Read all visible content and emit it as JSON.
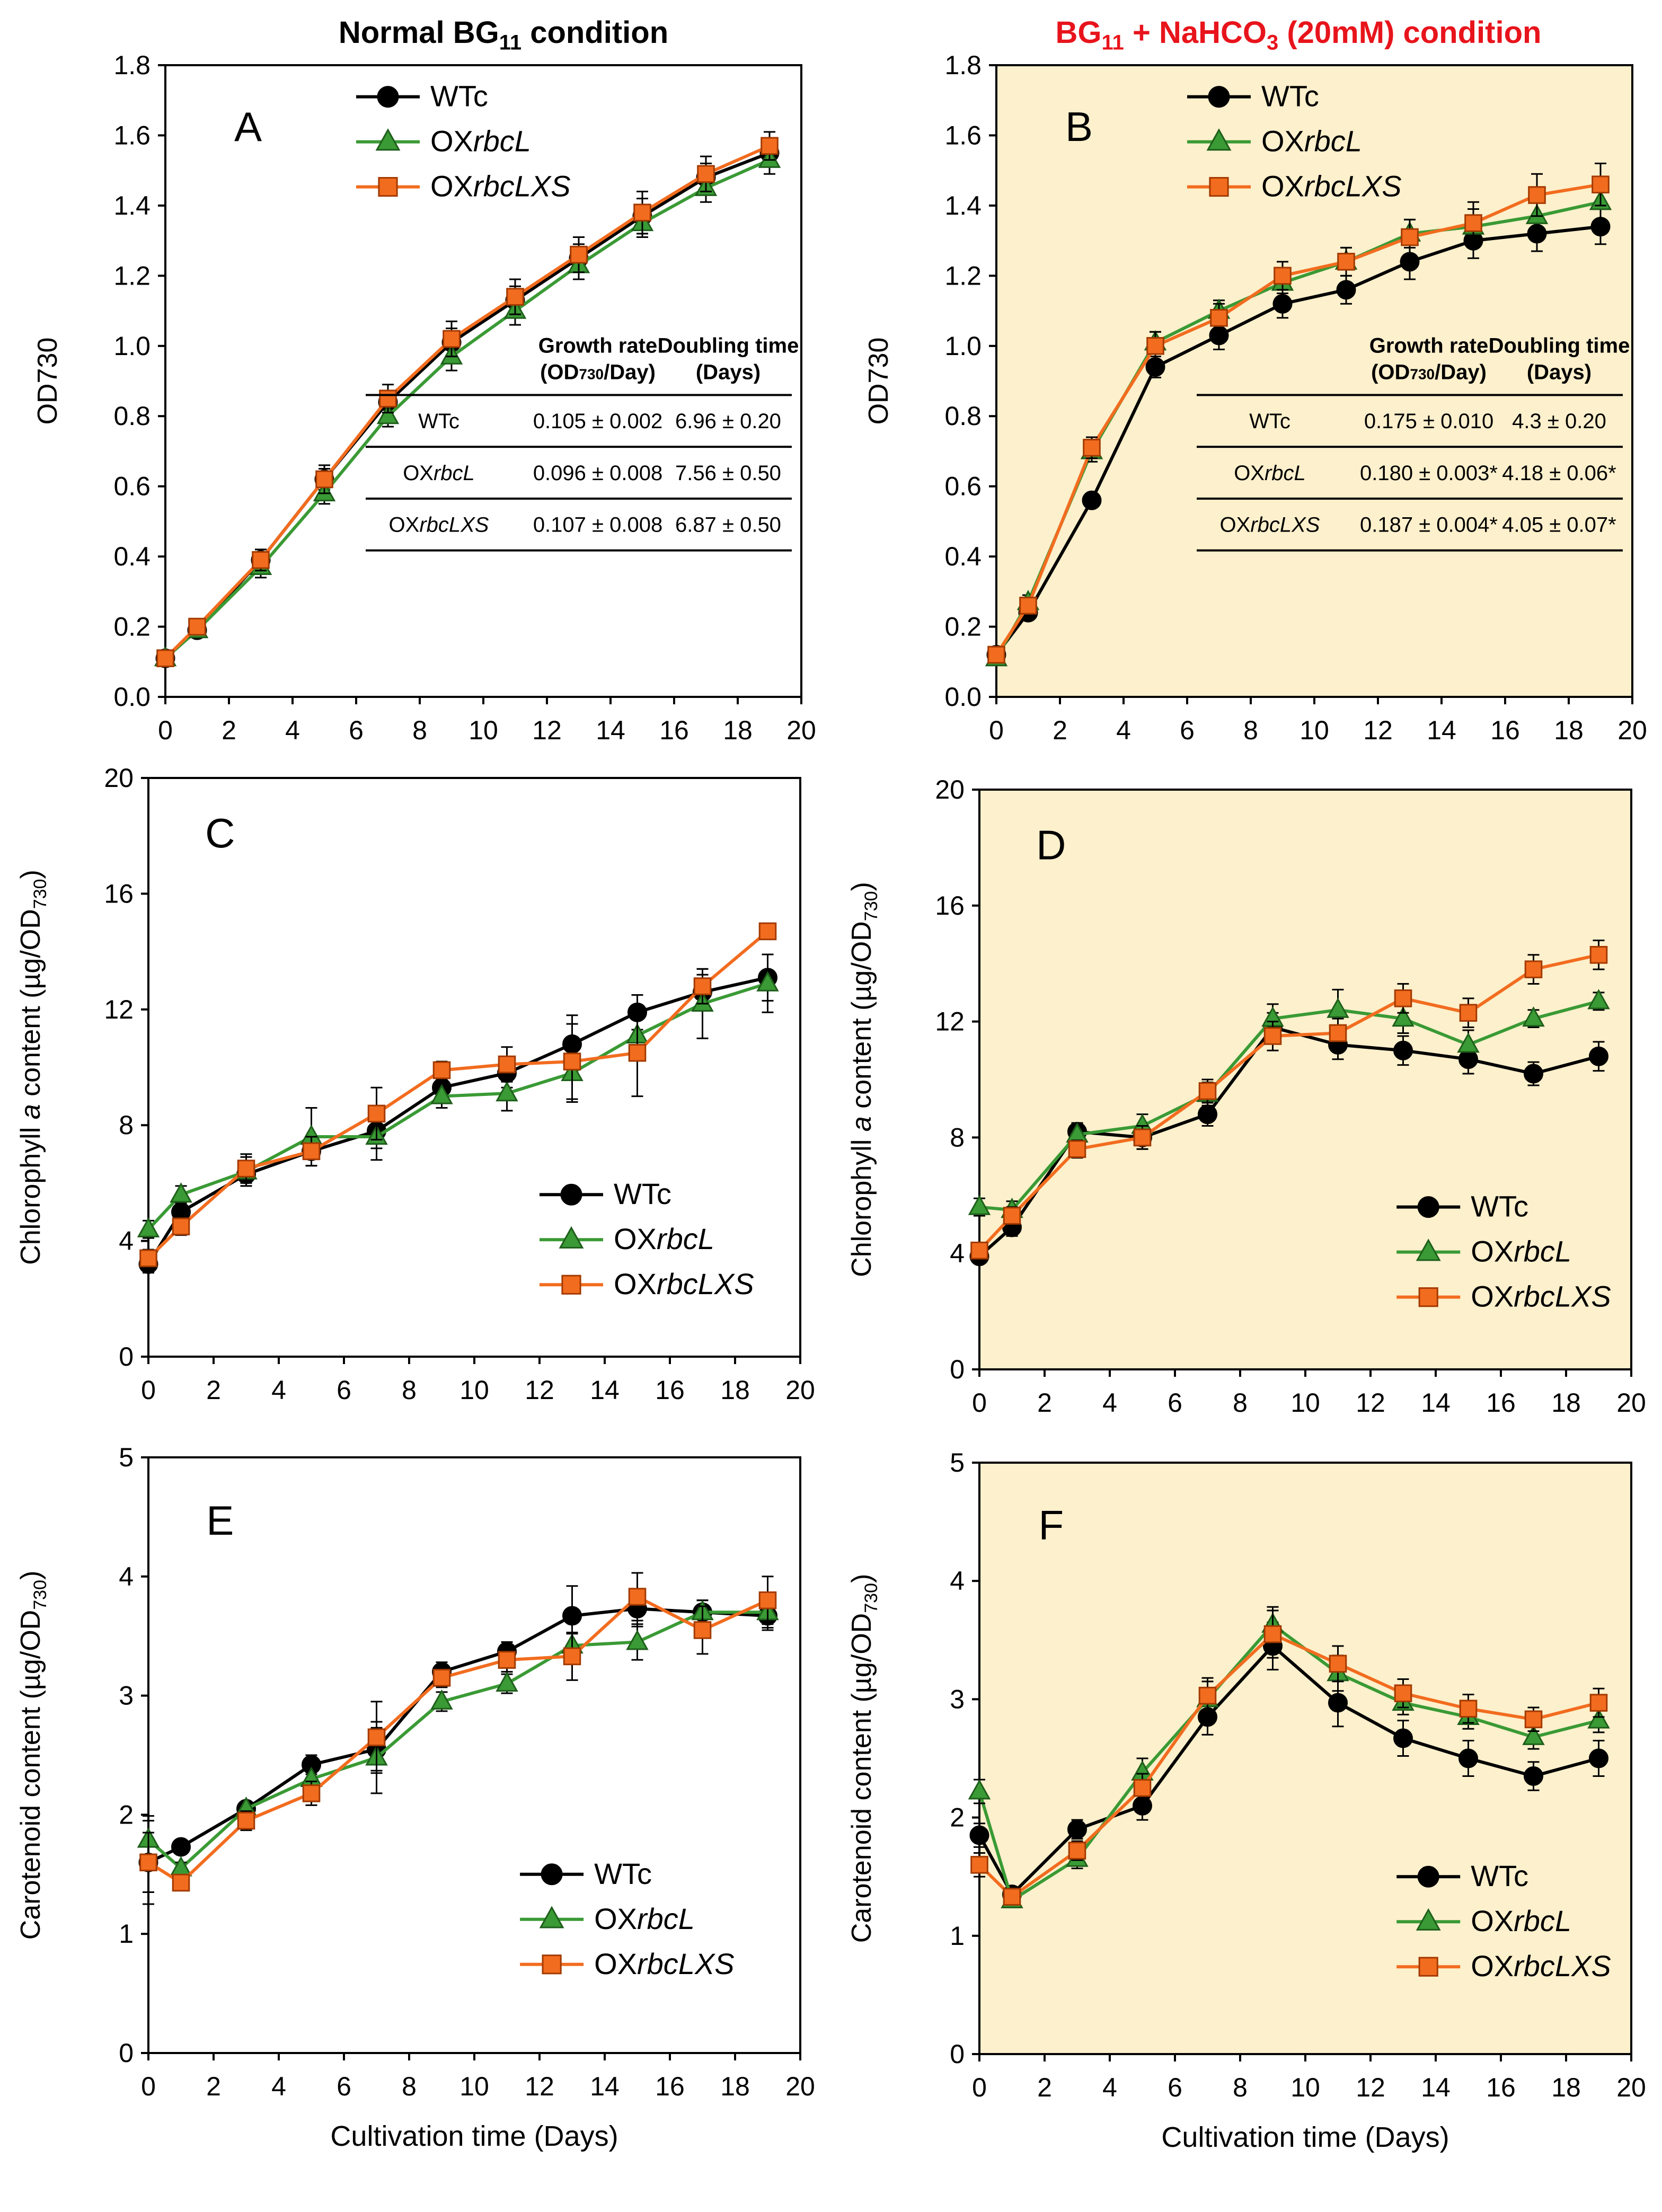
{
  "titles": {
    "left": {
      "main": "Normal BG",
      "sub": "11",
      "rest": " condition"
    },
    "right": {
      "p1": "BG",
      "s1": "11",
      "p2": " + NaHCO",
      "s2": "3",
      "p3": " (20mM) condition"
    }
  },
  "colors": {
    "WTc": "#000000",
    "OXrbcL": "#3a9a35",
    "OXrbcLXS": "#f26c1f",
    "highlight_bg": "#fdf0cc",
    "title_red": "#e8141c"
  },
  "legend": [
    {
      "prefix": "WTc",
      "italic": ""
    },
    {
      "prefix": "OX",
      "italic": "rbcL"
    },
    {
      "prefix": "OX",
      "italic": "rbcLXS"
    }
  ],
  "chart_data": [
    {
      "id": "A",
      "type": "line",
      "panel_label": "A",
      "highlighted": false,
      "xlabel": "",
      "ylabel": "OD730",
      "xlim": [
        0,
        20
      ],
      "ylim": [
        0,
        1.8
      ],
      "xticks": [
        0,
        2,
        4,
        6,
        8,
        10,
        12,
        14,
        16,
        18,
        20
      ],
      "xtick_labels": [
        "0",
        "2",
        "4",
        "6",
        "8",
        "10",
        "12",
        "14",
        "16",
        "18",
        "20"
      ],
      "yticks": [
        0,
        0.2,
        0.4,
        0.6,
        0.8,
        1.0,
        1.2,
        1.4,
        1.6,
        1.8
      ],
      "ytick_labels": [
        "0.0",
        "0.2",
        "0.4",
        "0.6",
        "0.8",
        "1.0",
        "1.2",
        "1.4",
        "1.6",
        "1.8"
      ],
      "x": [
        0,
        1,
        3,
        5,
        7,
        9,
        11,
        13,
        15,
        17,
        19
      ],
      "series": [
        {
          "name": "WTc",
          "values": [
            0.11,
            0.19,
            0.39,
            0.62,
            0.84,
            1.01,
            1.13,
            1.25,
            1.37,
            1.48,
            1.55
          ],
          "errors": [
            0.02,
            0.02,
            0.03,
            0.03,
            0.03,
            0.04,
            0.04,
            0.04,
            0.05,
            0.04,
            0.04
          ]
        },
        {
          "name": "OXrbcL",
          "values": [
            0.11,
            0.19,
            0.37,
            0.58,
            0.8,
            0.97,
            1.1,
            1.23,
            1.35,
            1.45,
            1.53
          ],
          "errors": [
            0.02,
            0.02,
            0.03,
            0.03,
            0.03,
            0.04,
            0.04,
            0.04,
            0.04,
            0.04,
            0.04
          ]
        },
        {
          "name": "OXrbcLXS",
          "values": [
            0.11,
            0.2,
            0.39,
            0.62,
            0.85,
            1.02,
            1.14,
            1.26,
            1.38,
            1.49,
            1.57
          ],
          "errors": [
            0.02,
            0.02,
            0.03,
            0.04,
            0.04,
            0.05,
            0.05,
            0.05,
            0.06,
            0.05,
            0.04
          ]
        }
      ],
      "table": {
        "headers": [
          [
            "Growth rate",
            "(OD730/Day)"
          ],
          [
            "Doubling time",
            "(Days)"
          ]
        ],
        "rows": [
          {
            "prefix": "WTc",
            "italic": "",
            "rate": "0.105 ± 0.002",
            "doubling": "6.96 ± 0.20"
          },
          {
            "prefix": "OX",
            "italic": "rbcL",
            "rate": "0.096 ± 0.008",
            "doubling": "7.56 ± 0.50"
          },
          {
            "prefix": "OX",
            "italic": "rbcLXS",
            "rate": "0.107 ± 0.008",
            "doubling": "6.87 ± 0.50"
          }
        ]
      }
    },
    {
      "id": "B",
      "type": "line",
      "panel_label": "B",
      "highlighted": true,
      "xlabel": "",
      "ylabel": "OD730",
      "xlim": [
        0,
        20
      ],
      "ylim": [
        0,
        1.8
      ],
      "xticks": [
        0,
        2,
        4,
        6,
        8,
        10,
        12,
        14,
        16,
        18,
        20
      ],
      "xtick_labels": [
        "0",
        "2",
        "4",
        "6",
        "8",
        "10",
        "12",
        "14",
        "16",
        "18",
        "20"
      ],
      "yticks": [
        0,
        0.2,
        0.4,
        0.6,
        0.8,
        1.0,
        1.2,
        1.4,
        1.6,
        1.8
      ],
      "ytick_labels": [
        "0.0",
        "0.2",
        "0.4",
        "0.6",
        "0.8",
        "1.0",
        "1.2",
        "1.4",
        "1.6",
        "1.8"
      ],
      "x": [
        0,
        1,
        3,
        5,
        7,
        9,
        11,
        13,
        15,
        17,
        19
      ],
      "series": [
        {
          "name": "WTc",
          "values": [
            0.12,
            0.24,
            0.56,
            0.94,
            1.03,
            1.12,
            1.16,
            1.24,
            1.3,
            1.32,
            1.34
          ],
          "errors": [
            0.02,
            0.02,
            0.02,
            0.03,
            0.04,
            0.04,
            0.04,
            0.05,
            0.05,
            0.05,
            0.05
          ]
        },
        {
          "name": "OXrbcL",
          "values": [
            0.11,
            0.27,
            0.7,
            1.01,
            1.1,
            1.18,
            1.24,
            1.32,
            1.34,
            1.37,
            1.41
          ],
          "errors": [
            0.02,
            0.02,
            0.03,
            0.03,
            0.03,
            0.03,
            0.04,
            0.04,
            0.05,
            0.05,
            0.05
          ]
        },
        {
          "name": "OXrbcLXS",
          "values": [
            0.12,
            0.26,
            0.71,
            1.0,
            1.08,
            1.2,
            1.24,
            1.31,
            1.35,
            1.43,
            1.46
          ],
          "errors": [
            0.02,
            0.02,
            0.03,
            0.04,
            0.04,
            0.04,
            0.04,
            0.05,
            0.06,
            0.06,
            0.06
          ]
        }
      ],
      "table": {
        "headers": [
          [
            "Growth rate",
            "(OD730/Day)"
          ],
          [
            "Doubling time",
            "(Days)"
          ]
        ],
        "rows": [
          {
            "prefix": "WTc",
            "italic": "",
            "rate": "0.175 ± 0.010",
            "doubling": "4.3 ± 0.20"
          },
          {
            "prefix": "OX",
            "italic": "rbcL",
            "rate": "0.180 ± 0.003*",
            "doubling": "4.18 ± 0.06*"
          },
          {
            "prefix": "OX",
            "italic": "rbcLXS",
            "rate": "0.187 ± 0.004*",
            "doubling": "4.05 ± 0.07*"
          }
        ]
      }
    },
    {
      "id": "C",
      "type": "line",
      "panel_label": "C",
      "highlighted": false,
      "xlabel": "",
      "ylabel": "Chlorophyll a content (µg/OD730)",
      "xlim": [
        0,
        20
      ],
      "ylim": [
        0,
        20
      ],
      "xticks": [
        0,
        2,
        4,
        6,
        8,
        10,
        12,
        14,
        16,
        18,
        20
      ],
      "xtick_labels": [
        "0",
        "2",
        "4",
        "6",
        "8",
        "10",
        "12",
        "14",
        "16",
        "18",
        "20"
      ],
      "yticks": [
        0,
        4,
        8,
        12,
        16,
        20
      ],
      "ytick_labels": [
        "0",
        "4",
        "8",
        "12",
        "16",
        "20"
      ],
      "x": [
        0,
        1,
        3,
        5,
        7,
        9,
        11,
        13,
        15,
        17,
        19
      ],
      "series": [
        {
          "name": "WTc",
          "values": [
            3.2,
            5.0,
            6.3,
            7.1,
            7.8,
            9.3,
            9.8,
            10.8,
            11.9,
            12.6,
            13.1
          ],
          "errors": [
            0.3,
            0.3,
            0.4,
            0.5,
            0.6,
            0.4,
            0.5,
            1.0,
            0.6,
            0.6,
            0.8
          ]
        },
        {
          "name": "OXrbcL",
          "values": [
            4.4,
            5.6,
            6.4,
            7.6,
            7.6,
            9.0,
            9.1,
            9.8,
            11.1,
            12.2,
            12.9
          ],
          "errors": [
            0.3,
            0.3,
            0.5,
            1.0,
            0.8,
            0.4,
            0.6,
            1.0,
            0.7,
            1.2,
            1.0
          ]
        },
        {
          "name": "OXrbcLXS",
          "values": [
            3.4,
            4.5,
            6.5,
            7.1,
            8.4,
            9.9,
            10.1,
            10.2,
            10.5,
            12.8,
            14.7
          ],
          "errors": [
            0.3,
            0.3,
            0.5,
            0.5,
            0.9,
            0.3,
            0.6,
            1.3,
            1.5,
            0.6,
            0.2
          ]
        }
      ]
    },
    {
      "id": "D",
      "type": "line",
      "panel_label": "D",
      "highlighted": true,
      "xlabel": "",
      "ylabel": "Chlorophyll a content (µg/OD730)",
      "xlim": [
        0,
        20
      ],
      "ylim": [
        0,
        20
      ],
      "xticks": [
        0,
        2,
        4,
        6,
        8,
        10,
        12,
        14,
        16,
        18,
        20
      ],
      "xtick_labels": [
        "0",
        "2",
        "4",
        "6",
        "8",
        "10",
        "12",
        "14",
        "16",
        "18",
        "20"
      ],
      "yticks": [
        0,
        4,
        8,
        12,
        16,
        20
      ],
      "ytick_labels": [
        "0",
        "4",
        "8",
        "12",
        "16",
        "20"
      ],
      "x": [
        0,
        1,
        3,
        5,
        7,
        9,
        11,
        13,
        15,
        17,
        19
      ],
      "series": [
        {
          "name": "WTc",
          "values": [
            3.9,
            4.9,
            8.2,
            8.0,
            8.8,
            11.8,
            11.2,
            11.0,
            10.7,
            10.2,
            10.8
          ],
          "errors": [
            0.2,
            0.3,
            0.3,
            0.4,
            0.4,
            0.5,
            0.5,
            0.5,
            0.5,
            0.4,
            0.5
          ]
        },
        {
          "name": "OXrbcL",
          "values": [
            5.6,
            5.5,
            8.1,
            8.4,
            9.5,
            12.1,
            12.4,
            12.1,
            11.2,
            12.1,
            12.7
          ],
          "errors": [
            0.3,
            0.3,
            0.3,
            0.4,
            0.4,
            0.5,
            0.7,
            0.5,
            0.5,
            0.3,
            0.3
          ]
        },
        {
          "name": "OXrbcLXS",
          "values": [
            4.1,
            5.3,
            7.6,
            8.0,
            9.6,
            11.5,
            11.6,
            12.8,
            12.3,
            13.8,
            14.3
          ],
          "errors": [
            0.2,
            0.3,
            0.3,
            0.4,
            0.4,
            0.5,
            0.5,
            0.5,
            0.5,
            0.5,
            0.5
          ]
        }
      ]
    },
    {
      "id": "E",
      "type": "line",
      "panel_label": "E",
      "highlighted": false,
      "xlabel": "Cultivation time (Days)",
      "ylabel": "Carotenoid content (µg/OD730)",
      "xlim": [
        0,
        20
      ],
      "ylim": [
        0,
        5
      ],
      "xticks": [
        0,
        2,
        4,
        6,
        8,
        10,
        12,
        14,
        16,
        18,
        20
      ],
      "xtick_labels": [
        "0",
        "2",
        "4",
        "6",
        "8",
        "10",
        "12",
        "14",
        "16",
        "18",
        "20"
      ],
      "yticks": [
        0,
        1,
        2,
        3,
        4,
        5
      ],
      "ytick_labels": [
        "0",
        "1",
        "2",
        "3",
        "4",
        "5"
      ],
      "x": [
        0,
        1,
        3,
        5,
        7,
        9,
        11,
        13,
        15,
        17,
        19
      ],
      "series": [
        {
          "name": "WTc",
          "values": [
            1.6,
            1.73,
            2.05,
            2.42,
            2.55,
            3.2,
            3.37,
            3.67,
            3.73,
            3.7,
            3.67
          ],
          "errors": [
            0.35,
            0.05,
            0.05,
            0.08,
            0.18,
            0.08,
            0.08,
            0.25,
            0.15,
            0.1,
            0.1
          ]
        },
        {
          "name": "OXrbcL",
          "values": [
            1.79,
            1.55,
            2.05,
            2.3,
            2.48,
            2.95,
            3.1,
            3.42,
            3.45,
            3.7,
            3.7
          ],
          "errors": [
            0.2,
            0.05,
            0.05,
            0.08,
            0.3,
            0.08,
            0.08,
            0.1,
            0.15,
            0.1,
            0.15
          ]
        },
        {
          "name": "OXrbcLXS",
          "values": [
            1.6,
            1.43,
            1.95,
            2.18,
            2.65,
            3.15,
            3.3,
            3.33,
            3.83,
            3.55,
            3.8
          ],
          "errors": [
            0.25,
            0.05,
            0.08,
            0.1,
            0.3,
            0.08,
            0.1,
            0.2,
            0.2,
            0.2,
            0.2
          ]
        }
      ]
    },
    {
      "id": "F",
      "type": "line",
      "panel_label": "F",
      "highlighted": true,
      "xlabel": "Cultivation time (Days)",
      "ylabel": "Carotenoid content (µg/OD730)",
      "xlim": [
        0,
        20
      ],
      "ylim": [
        0,
        5
      ],
      "xticks": [
        0,
        2,
        4,
        6,
        8,
        10,
        12,
        14,
        16,
        18,
        20
      ],
      "xtick_labels": [
        "0",
        "2",
        "4",
        "6",
        "8",
        "10",
        "12",
        "14",
        "16",
        "18",
        "20"
      ],
      "yticks": [
        0,
        1,
        2,
        3,
        4,
        5
      ],
      "ytick_labels": [
        "0",
        "1",
        "2",
        "3",
        "4",
        "5"
      ],
      "x": [
        0,
        1,
        3,
        5,
        7,
        9,
        11,
        13,
        15,
        17,
        19
      ],
      "series": [
        {
          "name": "WTc",
          "values": [
            1.85,
            1.35,
            1.9,
            2.1,
            2.85,
            3.45,
            2.97,
            2.67,
            2.5,
            2.35,
            2.5
          ],
          "errors": [
            0.1,
            0.05,
            0.08,
            0.12,
            0.15,
            0.2,
            0.2,
            0.15,
            0.15,
            0.12,
            0.15
          ]
        },
        {
          "name": "OXrbcL",
          "values": [
            2.22,
            1.3,
            1.65,
            2.38,
            3.0,
            3.63,
            3.22,
            2.97,
            2.85,
            2.68,
            2.82
          ],
          "errors": [
            0.1,
            0.05,
            0.08,
            0.12,
            0.15,
            0.15,
            0.15,
            0.1,
            0.1,
            0.1,
            0.1
          ]
        },
        {
          "name": "OXrbcLXS",
          "values": [
            1.6,
            1.33,
            1.72,
            2.25,
            3.03,
            3.55,
            3.3,
            3.05,
            2.92,
            2.83,
            2.97
          ],
          "errors": [
            0.1,
            0.05,
            0.08,
            0.12,
            0.15,
            0.2,
            0.15,
            0.12,
            0.12,
            0.1,
            0.12
          ]
        }
      ]
    }
  ]
}
